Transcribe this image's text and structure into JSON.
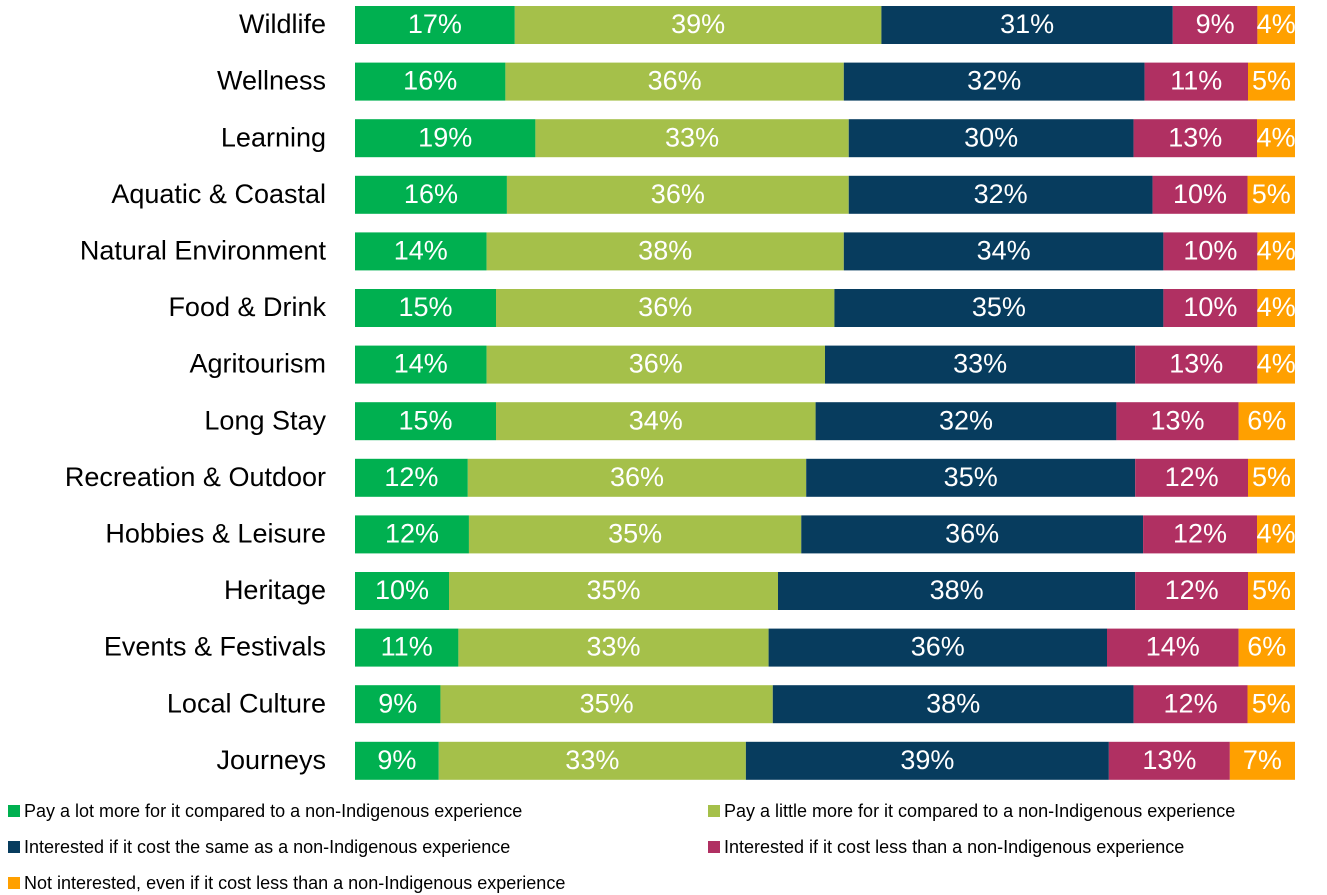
{
  "chart_data": {
    "type": "bar",
    "orientation": "horizontal",
    "stacked": true,
    "percent_stacked": true,
    "title": "",
    "xlabel": "",
    "ylabel": "",
    "grid": false,
    "legend_position": "bottom",
    "categories": [
      "Wildlife",
      "Wellness",
      "Learning",
      "Aquatic & Coastal",
      "Natural Environment",
      "Food & Drink",
      "Agritourism",
      "Long Stay",
      "Recreation & Outdoor",
      "Hobbies & Leisure",
      "Heritage",
      "Events & Festivals",
      "Local Culture",
      "Journeys"
    ],
    "series": [
      {
        "name": "Pay a lot more for it compared to a non-Indigenous experience",
        "color": "#00b050",
        "values": [
          17,
          16,
          19,
          16,
          14,
          15,
          14,
          15,
          12,
          12,
          10,
          11,
          9,
          9
        ]
      },
      {
        "name": "Pay a little more for it compared to a non-Indigenous experience",
        "color": "#a5c04a",
        "values": [
          39,
          36,
          33,
          36,
          38,
          36,
          36,
          34,
          36,
          35,
          35,
          33,
          35,
          33
        ]
      },
      {
        "name": "Interested if it cost the same as a non-Indigenous experience",
        "color": "#073c5e",
        "values": [
          31,
          32,
          30,
          32,
          34,
          35,
          33,
          32,
          35,
          36,
          38,
          36,
          38,
          39
        ]
      },
      {
        "name": "Interested if it cost less than a non-Indigenous experience",
        "color": "#b03062",
        "values": [
          9,
          11,
          13,
          10,
          10,
          10,
          13,
          13,
          12,
          12,
          12,
          14,
          12,
          13
        ]
      },
      {
        "name": "Not interested, even if it cost less than a non-Indigenous experience",
        "color": "#ffa000",
        "values": [
          4,
          5,
          4,
          5,
          4,
          4,
          4,
          6,
          5,
          4,
          5,
          6,
          5,
          7
        ]
      }
    ],
    "value_suffix": "%"
  }
}
